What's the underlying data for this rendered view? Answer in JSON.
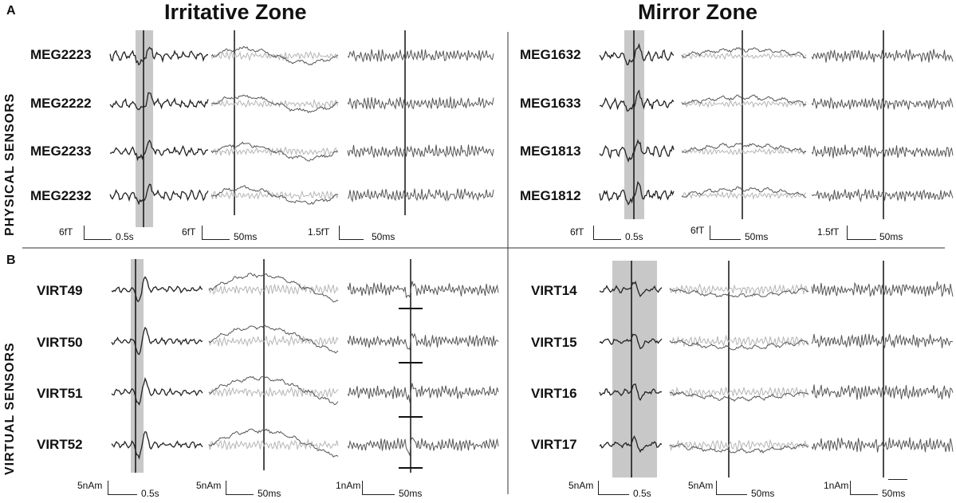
{
  "panel_a_letter": "A",
  "panel_b_letter": "B",
  "headers": {
    "left": "Irritative Zone",
    "right": "Mirror Zone"
  },
  "row_labels": {
    "top": "PHYSICAL SENSORS",
    "bottom": "VIRTUAL  SENSORS"
  },
  "channels": {
    "irritative_physical": [
      "MEG2223",
      "MEG2222",
      "MEG2233",
      "MEG2232"
    ],
    "mirror_physical": [
      "MEG1632",
      "MEG1633",
      "MEG1813",
      "MEG1812"
    ],
    "irritative_virtual": [
      "VIRT49",
      "VIRT50",
      "VIRT51",
      "VIRT52"
    ],
    "mirror_virtual": [
      "VIRT14",
      "VIRT15",
      "VIRT16",
      "VIRT17"
    ]
  },
  "scalebars": {
    "a_left": {
      "c1_amp": "6fT",
      "c1_time": "0.5s",
      "c2_amp": "6fT",
      "c2_time": "50ms",
      "c3_amp": "1.5fT",
      "c3_time": "50ms"
    },
    "a_right": {
      "c1_amp": "6fT",
      "c1_time": "0.5s",
      "c2_amp": "6fT",
      "c2_time": "50ms",
      "c3_amp": "1.5fT",
      "c3_time": "50ms"
    },
    "b_left": {
      "c1_amp": "5nAm",
      "c1_time": "0.5s",
      "c2_amp": "5nAm",
      "c2_time": "50ms",
      "c3_amp": "1nAm",
      "c3_time": "50ms"
    },
    "b_right": {
      "c1_amp": "5nAm",
      "c1_time": "0.5s",
      "c2_amp": "5nAm",
      "c2_time": "50ms",
      "c3_amp": "1nAm",
      "c3_time": "50ms"
    }
  },
  "colors": {
    "raw_trace": "#222222",
    "filtered_dark": "#555555",
    "filtered_light": "#b5b5b5",
    "highlight": "#c8c8c8"
  }
}
